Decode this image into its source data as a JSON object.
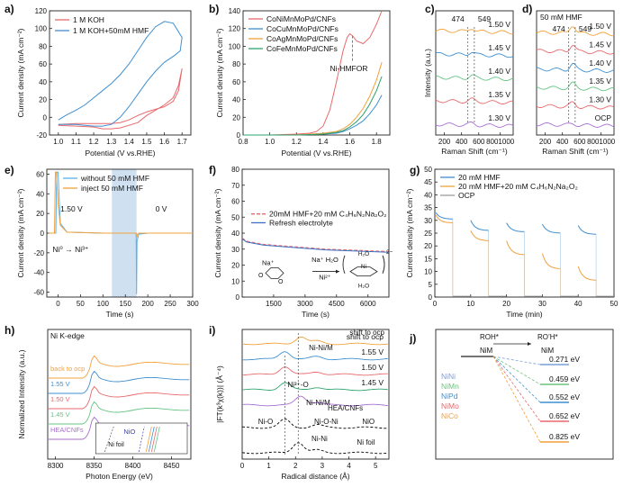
{
  "colors": {
    "red": "#e8696c",
    "blue": "#3f8fd0",
    "orange": "#f2a03c",
    "green": "#2ea36b",
    "gray": "#9a9a9a",
    "purple": "#a86fcf",
    "teal": "#2aa5a0",
    "olive": "#8d9a35",
    "ltblue": "#5ab1e8",
    "lgreen": "#64c483",
    "shade": "#cfe1f1",
    "dkblue": "#3a6fc2"
  },
  "chart_data": [
    {
      "id": "a",
      "type": "line",
      "panel_label": "a)",
      "xlabel": "Potential (V vs.RHE)",
      "ylabel": "Current density (mA cm⁻²)",
      "xlim": [
        0.95,
        1.75
      ],
      "ylim": [
        -20,
        120
      ],
      "xticks": [
        "1.0",
        "1.1",
        "1.2",
        "1.3",
        "1.4",
        "1.5",
        "1.6",
        "1.7"
      ],
      "yticks": [
        "-20",
        "0",
        "20",
        "40",
        "60",
        "80",
        "100",
        "120"
      ],
      "series": [
        {
          "name": "1 M KOH",
          "color": "red",
          "x": [
            1.0,
            1.1,
            1.2,
            1.3,
            1.35,
            1.4,
            1.45,
            1.5,
            1.55,
            1.6,
            1.65,
            1.68,
            1.7,
            1.68,
            1.65,
            1.6,
            1.55,
            1.5,
            1.45,
            1.4,
            1.35,
            1.3,
            1.25,
            1.2,
            1.1,
            1.0
          ],
          "y": [
            -8,
            -7,
            -7,
            -7,
            -6,
            -3,
            2,
            6,
            9,
            12,
            18,
            30,
            55,
            36,
            22,
            14,
            8,
            2,
            -6,
            -9,
            -12,
            -13,
            -13,
            -11,
            -10,
            -9
          ]
        },
        {
          "name": "1 M KOH+50mM HMF",
          "color": "blue",
          "x": [
            1.0,
            1.05,
            1.1,
            1.15,
            1.2,
            1.25,
            1.3,
            1.35,
            1.4,
            1.45,
            1.5,
            1.55,
            1.6,
            1.65,
            1.7,
            1.69,
            1.66,
            1.6,
            1.55,
            1.5,
            1.45,
            1.4,
            1.35,
            1.3,
            1.25,
            1.2,
            1.15,
            1.1,
            1.05,
            1.0
          ],
          "y": [
            -3,
            3,
            8,
            14,
            22,
            30,
            38,
            48,
            60,
            75,
            90,
            102,
            108,
            106,
            90,
            75,
            70,
            62,
            52,
            40,
            26,
            12,
            0,
            -8,
            -10,
            -10,
            -9,
            -8,
            -8,
            -8
          ]
        }
      ]
    },
    {
      "id": "b",
      "type": "line",
      "panel_label": "b)",
      "xlabel": "Potential (V vs.RHE)",
      "ylabel": "Current density (mA cm⁻²)",
      "xlim": [
        0.8,
        1.9
      ],
      "ylim": [
        0,
        140
      ],
      "xticks": [
        "0.8",
        "1.0",
        "1.2",
        "1.4",
        "1.6",
        "1.8"
      ],
      "yticks": [
        "0",
        "20",
        "40",
        "60",
        "80",
        "100",
        "120",
        "140"
      ],
      "annotation": "Ni-HMFOR",
      "annotation_x": 1.62,
      "series": [
        {
          "name": "CoNiMnMoPd/CNFs",
          "color": "red",
          "x": [
            0.8,
            1.0,
            1.2,
            1.3,
            1.35,
            1.4,
            1.45,
            1.5,
            1.55,
            1.58,
            1.6,
            1.62,
            1.65,
            1.7,
            1.75,
            1.8,
            1.84
          ],
          "y": [
            0,
            0,
            1,
            2,
            4,
            10,
            28,
            60,
            95,
            110,
            114,
            112,
            106,
            103,
            110,
            125,
            140
          ]
        },
        {
          "name": "CoCuMnMoPd/CNFs",
          "color": "blue",
          "x": [
            0.8,
            1.2,
            1.4,
            1.5,
            1.55,
            1.6,
            1.65,
            1.7,
            1.75,
            1.8,
            1.84
          ],
          "y": [
            0,
            0,
            1,
            2,
            4,
            7,
            11,
            16,
            24,
            34,
            45
          ]
        },
        {
          "name": "CoAgMnMoPd/CNFs",
          "color": "orange",
          "x": [
            0.8,
            1.2,
            1.4,
            1.5,
            1.55,
            1.6,
            1.65,
            1.7,
            1.75,
            1.8,
            1.84
          ],
          "y": [
            0,
            0,
            2,
            4,
            7,
            12,
            20,
            30,
            44,
            62,
            82
          ]
        },
        {
          "name": "CoFeMnMoPd/CNFs",
          "color": "green",
          "x": [
            0.8,
            1.2,
            1.4,
            1.5,
            1.55,
            1.6,
            1.65,
            1.7,
            1.75,
            1.8,
            1.84
          ],
          "y": [
            0,
            0,
            1,
            3,
            5,
            9,
            15,
            23,
            35,
            50,
            66
          ]
        }
      ]
    },
    {
      "id": "c",
      "type": "line",
      "panel_label": "c)",
      "xlabel": "Raman Shift (cm⁻¹)",
      "ylabel": "Intensity (a.u.)",
      "xlim": [
        100,
        1000
      ],
      "xticks": [
        "200",
        "400",
        "600",
        "8001000"
      ],
      "peaks": [
        "474",
        "549"
      ],
      "series": [
        {
          "name": "1.50 V",
          "color": "orange"
        },
        {
          "name": "1.45 V",
          "color": "blue"
        },
        {
          "name": "1.40 V",
          "color": "lgreen"
        },
        {
          "name": "1.35 V",
          "color": "red"
        },
        {
          "name": "1.30 V",
          "color": "purple"
        }
      ]
    },
    {
      "id": "d",
      "type": "line",
      "panel_label": "d)",
      "title": "50 mM HMF",
      "xlabel": "Raman Shift (cm⁻¹)",
      "ylabel": "",
      "xlim": [
        100,
        1000
      ],
      "xticks": [
        "200",
        "400",
        "600",
        "8001000"
      ],
      "peaks": [
        "474",
        "549"
      ],
      "series": [
        {
          "name": "1.50 V",
          "color": "orange"
        },
        {
          "name": "1.45 V",
          "color": "red"
        },
        {
          "name": "1.40 V",
          "color": "blue"
        },
        {
          "name": "1.35 V",
          "color": "lgreen"
        },
        {
          "name": "1.30 V",
          "color": "red"
        },
        {
          "name": "OCP",
          "color": "purple"
        }
      ]
    },
    {
      "id": "e",
      "type": "line",
      "panel_label": "e)",
      "xlabel": "Time (s)",
      "ylabel": "Current density (mA cm⁻²)",
      "xlim": [
        -25,
        300
      ],
      "ylim": [
        -65,
        65
      ],
      "xticks": [
        "0",
        "50",
        "100",
        "150",
        "200",
        "250",
        "300"
      ],
      "yticks": [
        "-60",
        "-40",
        "-20",
        "0",
        "20",
        "40",
        "60"
      ],
      "shade_x": [
        120,
        175
      ],
      "texts": [
        "1.50 V",
        "0 V",
        "Ni⁰ → Ni³⁺"
      ],
      "series": [
        {
          "name": "without 50 mM HMF",
          "color": "ltblue",
          "x": [
            -20,
            -5,
            -3,
            0,
            5,
            20,
            100,
            120,
            150,
            170,
            174,
            175,
            176,
            180,
            200,
            300
          ],
          "y": [
            0,
            0,
            62,
            62,
            10,
            1,
            0,
            0,
            0,
            0,
            0,
            -62,
            -8,
            -1,
            0,
            0
          ]
        },
        {
          "name": "inject 50 mM HMF",
          "color": "orange",
          "x": [
            -20,
            -8,
            -6,
            -4,
            0,
            5,
            20,
            100,
            120,
            150,
            174,
            175,
            177,
            180,
            200,
            300
          ],
          "y": [
            0,
            0,
            62,
            62,
            30,
            8,
            1,
            0,
            0,
            0,
            0,
            -5,
            -1,
            0,
            0,
            0
          ]
        }
      ]
    },
    {
      "id": "f",
      "type": "line",
      "panel_label": "f)",
      "xlabel": "Time (s)",
      "ylabel": "Current density (mA cm⁻²)",
      "xlim": [
        0,
        7000
      ],
      "ylim": [
        0,
        80
      ],
      "xticks": [
        "1500",
        "3000",
        "4500",
        "6000"
      ],
      "yticks": [
        "0",
        "10",
        "20",
        "30",
        "40",
        "50",
        "60",
        "70",
        "80"
      ],
      "legend_formula": "20mM HMF+20 mM C₄H₆N₂Na₂O₂",
      "reaction_labels": [
        "Na⁺",
        "Na⁺ H₂O",
        "Ni²⁺",
        "H₂O",
        "2−"
      ],
      "series": [
        {
          "name": "20mM HMF+20 mM C4H6N2Na2O2",
          "color": "red",
          "x": [
            0,
            200,
            1000,
            2000,
            3000,
            4000,
            5000,
            6000,
            7000
          ],
          "y": [
            37,
            35,
            33,
            32,
            31,
            30,
            29.5,
            29,
            28.5
          ]
        },
        {
          "name": "Refresh electrolyte",
          "color": "dkblue",
          "x": [
            0,
            200,
            1000,
            2000,
            3000,
            4000,
            5000,
            6000,
            7000
          ],
          "y": [
            36.5,
            34.5,
            32.5,
            31.5,
            30.5,
            29.5,
            29,
            28.5,
            28
          ]
        }
      ]
    },
    {
      "id": "g",
      "type": "line",
      "panel_label": "g)",
      "xlabel": "Time (min)",
      "ylabel": "Current density (mA cm⁻²)",
      "xlim": [
        0,
        50
      ],
      "ylim": [
        0,
        50
      ],
      "xticks": [
        "0",
        "10",
        "20",
        "30",
        "40",
        "50"
      ],
      "yticks": [
        "0",
        "5",
        "10",
        "15",
        "20",
        "25",
        "30",
        "35",
        "40",
        "45",
        "50"
      ],
      "series": [
        {
          "name": "20 mM HMF",
          "color": "blue",
          "segments": [
            [
              [
                0.3,
                33
              ],
              [
                5,
                30.5
              ]
            ],
            [
              [
                10,
                30
              ],
              [
                15,
                26
              ]
            ],
            [
              [
                20,
                29
              ],
              [
                25,
                25.5
              ]
            ],
            [
              [
                30,
                28.5
              ],
              [
                35,
                25
              ]
            ],
            [
              [
                40,
                28
              ],
              [
                45,
                24.5
              ]
            ]
          ]
        },
        {
          "name": "20 mM HMF+20 mM C4H6N2Na2O2",
          "color": "orange",
          "segments": [
            [
              [
                0.3,
                32
              ],
              [
                5,
                29
              ]
            ],
            [
              [
                10,
                26
              ],
              [
                15,
                22
              ]
            ],
            [
              [
                20,
                22
              ],
              [
                25,
                16.5
              ]
            ],
            [
              [
                30,
                17
              ],
              [
                35,
                11
              ]
            ],
            [
              [
                40,
                12
              ],
              [
                45,
                6.5
              ]
            ]
          ]
        },
        {
          "name": "OCP",
          "color": "gray",
          "segments": [
            [
              [
                5,
                0.3
              ],
              [
                10,
                0.3
              ]
            ],
            [
              [
                15,
                0.3
              ],
              [
                20,
                0.3
              ]
            ],
            [
              [
                25,
                0.3
              ],
              [
                30,
                0.3
              ]
            ],
            [
              [
                35,
                0.3
              ],
              [
                40,
                0.3
              ]
            ],
            [
              [
                45,
                0.3
              ],
              [
                50,
                0.3
              ]
            ]
          ]
        }
      ]
    },
    {
      "id": "h",
      "type": "line",
      "panel_label": "h)",
      "title": "Ni K-edge",
      "xlabel": "Photon Energy (eV)",
      "ylabel": "Normalized Intensity (a.u.)",
      "xlim": [
        8290,
        8475
      ],
      "xticks": [
        "8300",
        "8350",
        "8400",
        "8450"
      ],
      "inset_labels": [
        "Ni foil",
        "NiO"
      ],
      "series": [
        {
          "name": "back to ocp",
          "color": "orange"
        },
        {
          "name": "1.55 V",
          "color": "blue"
        },
        {
          "name": "1.50 V",
          "color": "red"
        },
        {
          "name": "1.45 V",
          "color": "lgreen"
        },
        {
          "name": "HEA/CNFs",
          "color": "purple"
        }
      ]
    },
    {
      "id": "i",
      "type": "line",
      "panel_label": "i)",
      "xlabel": "Radical distance (Å)",
      "ylabel": "|FT(k³χ(k))| (Å⁻⁴)",
      "xlim": [
        0,
        5.5
      ],
      "xticks": [
        "0",
        "1",
        "2",
        "3",
        "4",
        "5"
      ],
      "series": [
        {
          "name": "shift to ocp",
          "color": "orange"
        },
        {
          "name": "1.55 V",
          "color": "blue"
        },
        {
          "name": "1.50 V",
          "color": "red"
        },
        {
          "name": "1.45 V",
          "color": "green"
        },
        {
          "name": "HEA/CNFs",
          "color": "purple"
        },
        {
          "name": "NiO",
          "color": "black"
        },
        {
          "name": "Ni foil",
          "color": "black"
        }
      ],
      "peak_labels": [
        "Ni-Ni/M",
        "Ni³⁺-O",
        "Ni-Ni/M",
        "Ni-O",
        "Ni-O-Ni",
        "Ni-Ni",
        "NiO",
        "Ni foil"
      ]
    },
    {
      "id": "j",
      "type": "diagram",
      "panel_label": "j)",
      "reactant": "ROH*",
      "product": "RO’H*",
      "site": "NiM",
      "legend": [
        {
          "name": "NiNi",
          "color": "#7aa0d8"
        },
        {
          "name": "NiMn",
          "color": "#6cc27f"
        },
        {
          "name": "NiPd",
          "color": "#3c8fd0"
        },
        {
          "name": "NiMo",
          "color": "#e8696c"
        },
        {
          "name": "NiCo",
          "color": "#f2a03c"
        }
      ],
      "values": [
        "0.271 eV",
        "0.459 eV",
        "0.552 eV",
        "0.652 eV",
        "0.825 eV"
      ]
    }
  ]
}
